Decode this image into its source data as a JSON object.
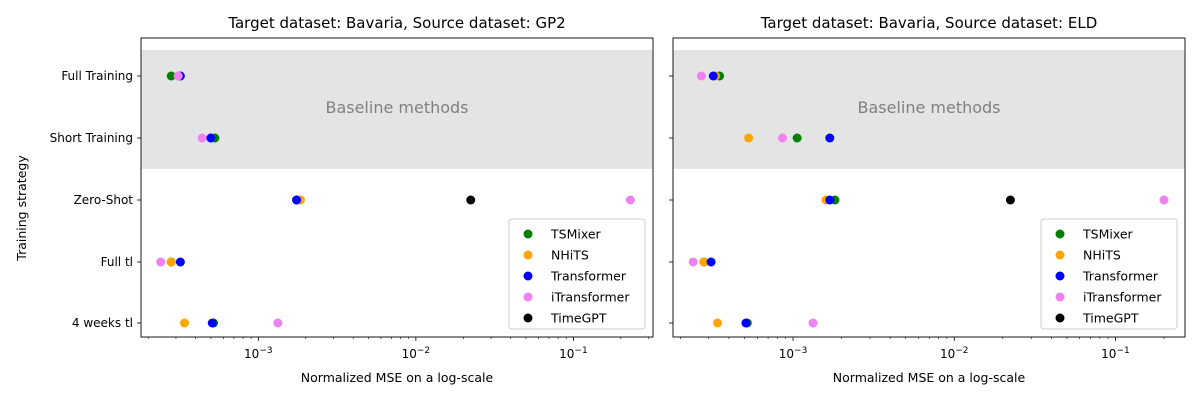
{
  "figure": {
    "ylabel": "Training strategy"
  },
  "chart_data": [
    {
      "type": "scatter",
      "title": "Target dataset: Bavaria, Source dataset: GP2",
      "xlabel": "Normalized MSE on a log-scale",
      "ylabel": "Training strategy",
      "x_scale": "log",
      "xlim": [
        0.00018,
        0.32
      ],
      "x_ticks": [
        {
          "value": 0.001,
          "base": "10",
          "exp": "−3"
        },
        {
          "value": 0.01,
          "base": "10",
          "exp": "−2"
        },
        {
          "value": 0.1,
          "base": "10",
          "exp": "−1"
        }
      ],
      "categories": [
        "Full Training",
        "Short Training",
        "Zero-Shot",
        "Full tl",
        "4 weeks tl"
      ],
      "shaded_region": {
        "label": "Baseline methods",
        "categories": [
          "Full Training",
          "Short Training"
        ],
        "color": "#e4e4e4"
      },
      "legend": "lower-right",
      "series": [
        {
          "name": "TSMixer",
          "color": "#008000",
          "points": [
            [
              0.00028,
              "Full Training"
            ],
            [
              0.00053,
              "Short Training"
            ],
            [
              0.00175,
              "Zero-Shot"
            ],
            [
              0.00028,
              "Full tl"
            ],
            [
              0.00052,
              "4 weeks tl"
            ]
          ]
        },
        {
          "name": "NHiTS",
          "color": "#ffa500",
          "points": [
            [
              0.00031,
              "Full Training"
            ],
            [
              0.0005,
              "Short Training"
            ],
            [
              0.00185,
              "Zero-Shot"
            ],
            [
              0.00028,
              "Full tl"
            ],
            [
              0.00034,
              "4 weeks tl"
            ]
          ]
        },
        {
          "name": "Transformer",
          "color": "#0000ff",
          "points": [
            [
              0.00032,
              "Full Training"
            ],
            [
              0.0005,
              "Short Training"
            ],
            [
              0.00175,
              "Zero-Shot"
            ],
            [
              0.00032,
              "Full tl"
            ],
            [
              0.00051,
              "4 weeks tl"
            ]
          ]
        },
        {
          "name": "iTransformer",
          "color": "#ee82ee",
          "points": [
            [
              0.00031,
              "Full Training"
            ],
            [
              0.00044,
              "Short Training"
            ],
            [
              0.23,
              "Zero-Shot"
            ],
            [
              0.00024,
              "Full tl"
            ],
            [
              0.00133,
              "4 weeks tl"
            ]
          ]
        },
        {
          "name": "TimeGPT",
          "color": "#000000",
          "points": [
            [
              0.0223,
              "Zero-Shot"
            ]
          ]
        }
      ]
    },
    {
      "type": "scatter",
      "title": "Target dataset: Bavaria, Source dataset: ELD",
      "xlabel": "Normalized  MSE on a log-scale",
      "x_scale": "log",
      "xlim": [
        0.00018,
        0.27
      ],
      "x_ticks": [
        {
          "value": 0.001,
          "base": "10",
          "exp": "−3"
        },
        {
          "value": 0.01,
          "base": "10",
          "exp": "−2"
        },
        {
          "value": 0.1,
          "base": "10",
          "exp": "−1"
        }
      ],
      "categories": [
        "Full Training",
        "Short Training",
        "Zero-Shot",
        "Full tl",
        "4 weeks tl"
      ],
      "shaded_region": {
        "label": "Baseline methods",
        "categories": [
          "Full Training",
          "Short Training"
        ],
        "color": "#e4e4e4"
      },
      "legend": "lower-right",
      "series": [
        {
          "name": "TSMixer",
          "color": "#008000",
          "points": [
            [
              0.00035,
              "Full Training"
            ],
            [
              0.00106,
              "Short Training"
            ],
            [
              0.00182,
              "Zero-Shot"
            ],
            [
              0.00028,
              "Full tl"
            ],
            [
              0.00052,
              "4 weeks tl"
            ]
          ]
        },
        {
          "name": "NHiTS",
          "color": "#ffa500",
          "points": [
            [
              0.00033,
              "Full Training"
            ],
            [
              0.00053,
              "Short Training"
            ],
            [
              0.0016,
              "Zero-Shot"
            ],
            [
              0.00028,
              "Full tl"
            ],
            [
              0.00034,
              "4 weeks tl"
            ]
          ]
        },
        {
          "name": "Transformer",
          "color": "#0000ff",
          "points": [
            [
              0.00032,
              "Full Training"
            ],
            [
              0.00169,
              "Short Training"
            ],
            [
              0.00169,
              "Zero-Shot"
            ],
            [
              0.00031,
              "Full tl"
            ],
            [
              0.00051,
              "4 weeks tl"
            ]
          ]
        },
        {
          "name": "iTransformer",
          "color": "#ee82ee",
          "points": [
            [
              0.00027,
              "Full Training"
            ],
            [
              0.00086,
              "Short Training"
            ],
            [
              0.2,
              "Zero-Shot"
            ],
            [
              0.00024,
              "Full tl"
            ],
            [
              0.00133,
              "4 weeks tl"
            ]
          ]
        },
        {
          "name": "TimeGPT",
          "color": "#000000",
          "points": [
            [
              0.0223,
              "Zero-Shot"
            ]
          ]
        }
      ]
    }
  ]
}
